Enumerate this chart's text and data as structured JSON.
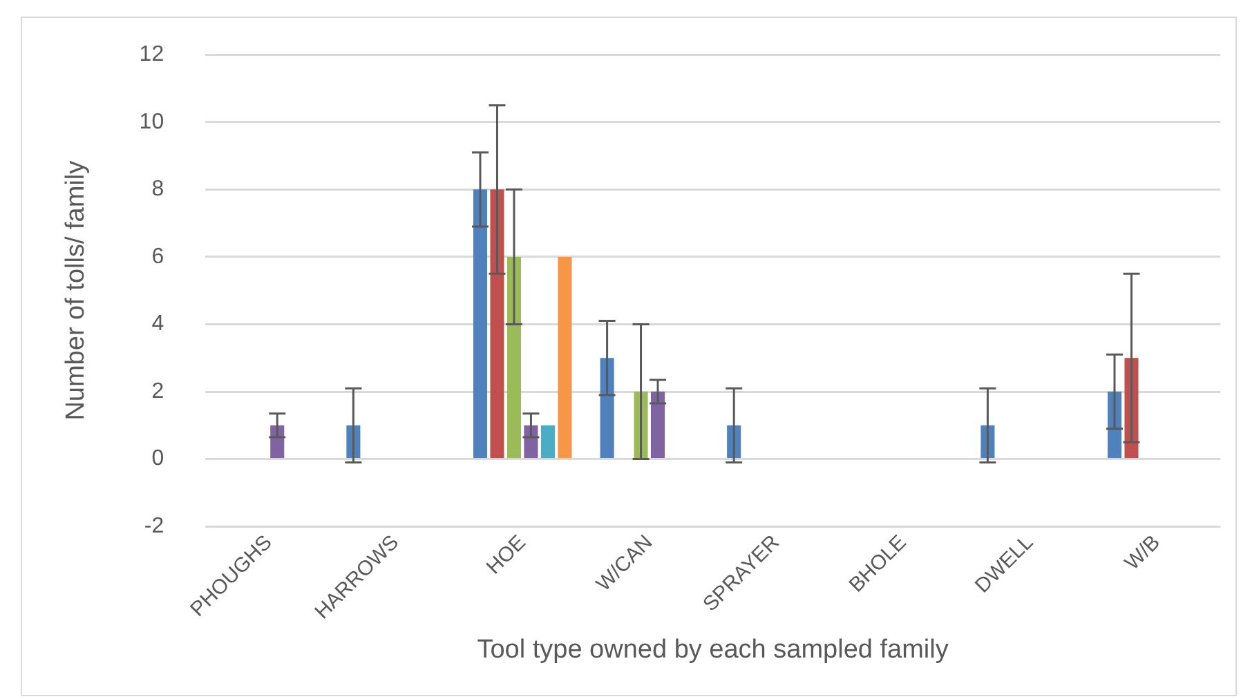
{
  "chart_data": {
    "type": "bar",
    "xlabel": "Tool type owned by each sampled family",
    "ylabel": "Number of tolls/ family",
    "categories": [
      "PHOUGHS",
      "HARROWS",
      "HOE",
      "W/CAN",
      "SPRAYER",
      "BHOLE",
      "DWELL",
      "W/B"
    ],
    "series": [
      {
        "color": "#4f81bd",
        "values": [
          null,
          1,
          8,
          3,
          1,
          null,
          1,
          2
        ],
        "errors": [
          null,
          1.1,
          1.1,
          1.1,
          1.1,
          null,
          1.1,
          1.1
        ]
      },
      {
        "color": "#c0504d",
        "values": [
          null,
          null,
          8,
          null,
          null,
          null,
          null,
          3
        ],
        "errors": [
          null,
          null,
          2.5,
          null,
          null,
          null,
          null,
          2.5
        ]
      },
      {
        "color": "#9bbb59",
        "values": [
          null,
          null,
          6,
          2,
          null,
          null,
          null,
          null
        ],
        "errors": [
          null,
          null,
          2,
          2,
          null,
          null,
          null,
          null
        ]
      },
      {
        "color": "#8064a2",
        "values": [
          1,
          null,
          1,
          2,
          null,
          null,
          null,
          null
        ],
        "errors": [
          0.35,
          null,
          0.35,
          0.35,
          null,
          null,
          null,
          null
        ]
      },
      {
        "color": "#4bacc6",
        "values": [
          null,
          null,
          1,
          null,
          null,
          null,
          null,
          null
        ]
      },
      {
        "color": "#f79646",
        "values": [
          null,
          null,
          6,
          null,
          null,
          null,
          null,
          null
        ]
      }
    ],
    "ylim": [
      -2,
      12
    ],
    "yticks": [
      -2,
      0,
      2,
      4,
      6,
      8,
      10,
      12
    ],
    "grid": "y",
    "legend": false
  }
}
